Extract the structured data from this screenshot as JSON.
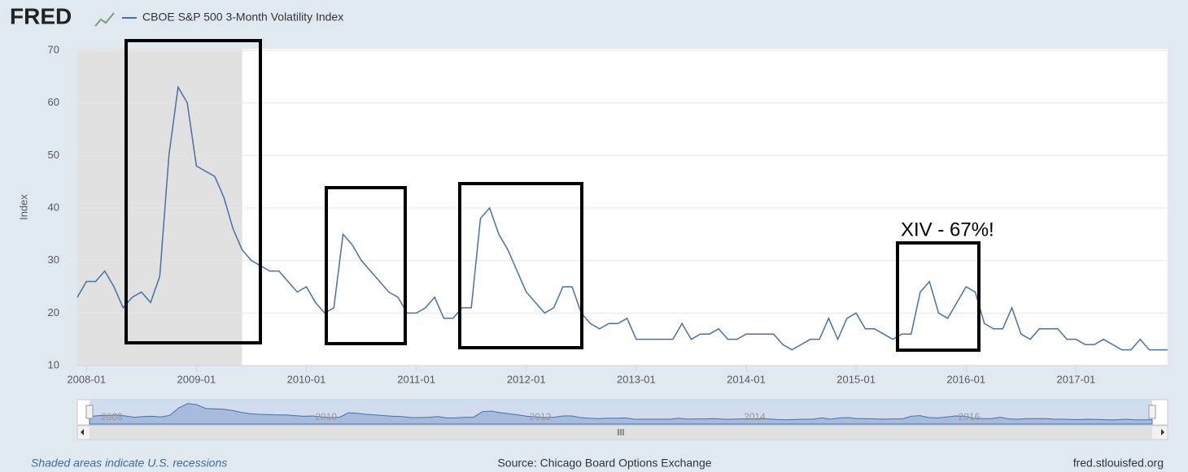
{
  "logo": "FRED",
  "footer": {
    "note": "Shaded areas indicate U.S. recessions",
    "source": "Source: Chicago Board Options Exchange",
    "site": "fred.stlouisfed.org"
  },
  "annotation": "XIV - 67%!",
  "navigator": {
    "labels": [
      "2008",
      "2010",
      "2012",
      "2014",
      "2016"
    ]
  },
  "chart_data": {
    "type": "line",
    "y_label": "Index",
    "x": [
      "2007-12",
      "2008-01",
      "2008-02",
      "2008-03",
      "2008-04",
      "2008-05",
      "2008-06",
      "2008-07",
      "2008-08",
      "2008-09",
      "2008-10",
      "2008-11",
      "2008-12",
      "2009-01",
      "2009-02",
      "2009-03",
      "2009-04",
      "2009-05",
      "2009-06",
      "2009-07",
      "2009-08",
      "2009-09",
      "2009-10",
      "2009-11",
      "2009-12",
      "2010-01",
      "2010-02",
      "2010-03",
      "2010-04",
      "2010-05",
      "2010-06",
      "2010-07",
      "2010-08",
      "2010-09",
      "2010-10",
      "2010-11",
      "2010-12",
      "2011-01",
      "2011-02",
      "2011-03",
      "2011-04",
      "2011-05",
      "2011-06",
      "2011-07",
      "2011-08",
      "2011-09",
      "2011-10",
      "2011-11",
      "2011-12",
      "2012-01",
      "2012-02",
      "2012-03",
      "2012-04",
      "2012-05",
      "2012-06",
      "2012-07",
      "2012-08",
      "2012-09",
      "2012-10",
      "2012-11",
      "2012-12",
      "2013-01",
      "2013-02",
      "2013-03",
      "2013-04",
      "2013-05",
      "2013-06",
      "2013-07",
      "2013-08",
      "2013-09",
      "2013-10",
      "2013-11",
      "2013-12",
      "2014-01",
      "2014-02",
      "2014-03",
      "2014-04",
      "2014-05",
      "2014-06",
      "2014-07",
      "2014-08",
      "2014-09",
      "2014-10",
      "2014-11",
      "2014-12",
      "2015-01",
      "2015-02",
      "2015-03",
      "2015-04",
      "2015-05",
      "2015-06",
      "2015-07",
      "2015-08",
      "2015-09",
      "2015-10",
      "2015-11",
      "2015-12",
      "2016-01",
      "2016-02",
      "2016-03",
      "2016-04",
      "2016-05",
      "2016-06",
      "2016-07",
      "2016-08",
      "2016-09",
      "2016-10",
      "2016-11",
      "2016-12",
      "2017-01",
      "2017-02",
      "2017-03",
      "2017-04",
      "2017-05",
      "2017-06",
      "2017-07",
      "2017-08",
      "2017-09",
      "2017-10",
      "2017-11"
    ],
    "series": [
      {
        "name": "CBOE S&P 500 3-Month Volatility Index",
        "color": "#4572a7",
        "values": [
          23,
          26,
          26,
          28,
          25,
          21,
          23,
          24,
          22,
          27,
          50,
          63,
          60,
          48,
          47,
          46,
          42,
          36,
          32,
          30,
          29,
          28,
          28,
          26,
          24,
          25,
          22,
          20,
          21,
          35,
          33,
          30,
          28,
          26,
          24,
          23,
          20,
          20,
          21,
          23,
          19,
          19,
          21,
          21,
          38,
          40,
          35,
          32,
          28,
          24,
          22,
          20,
          21,
          25,
          25,
          20,
          18,
          17,
          18,
          18,
          19,
          15,
          15,
          15,
          15,
          15,
          18,
          15,
          16,
          16,
          17,
          15,
          15,
          16,
          16,
          16,
          16,
          14,
          13,
          14,
          15,
          15,
          19,
          15,
          19,
          20,
          17,
          17,
          16,
          15,
          16,
          16,
          24,
          26,
          20,
          19,
          22,
          25,
          24,
          18,
          17,
          17,
          21,
          16,
          15,
          17,
          17,
          17,
          15,
          15,
          14,
          14,
          15,
          14,
          13,
          13,
          15,
          13,
          13,
          13
        ]
      }
    ],
    "xlim": [
      "2007-12",
      "2017-11"
    ],
    "xticks": [
      "2008-01",
      "2009-01",
      "2010-01",
      "2011-01",
      "2012-01",
      "2013-01",
      "2014-01",
      "2015-01",
      "2016-01",
      "2017-01"
    ],
    "ylim": [
      10,
      70
    ],
    "yticks": [
      10,
      20,
      30,
      40,
      50,
      60,
      70
    ],
    "grid": true,
    "recessions": [
      [
        "2007-12",
        "2009-06"
      ]
    ]
  }
}
